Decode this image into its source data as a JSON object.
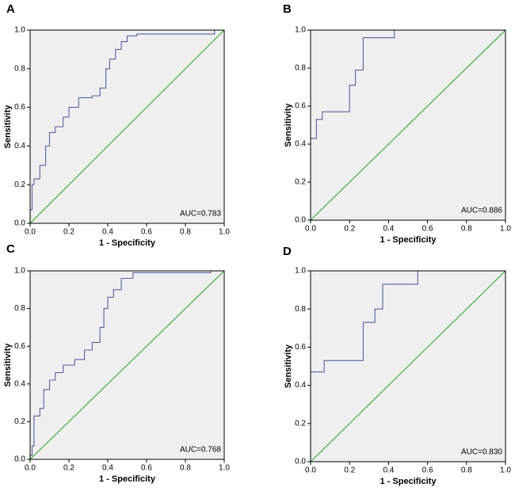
{
  "chart_data": [
    {
      "type": "line",
      "label": "A",
      "xlabel": "1 - Specificity",
      "ylabel": "Sensitivity",
      "annotation": "AUC=0.783",
      "xlim": [
        0,
        1
      ],
      "ylim": [
        0,
        1
      ],
      "xticks": [
        {
          "value": 0,
          "label": "0.0"
        },
        0.2,
        0.4,
        0.6,
        0.8,
        {
          "value": 1,
          "label": "1.0"
        }
      ],
      "yticks": [
        {
          "value": 0,
          "label": "0.0"
        },
        0.2,
        0.4,
        0.6,
        0.8,
        {
          "value": 1,
          "label": "1.0"
        }
      ],
      "series": [
        {
          "color": "#5b5ea6",
          "x": [
            0,
            0,
            0.01,
            0.01,
            0.02,
            0.02,
            0.05,
            0.05,
            0.08,
            0.08,
            0.1,
            0.1,
            0.13,
            0.13,
            0.17,
            0.17,
            0.2,
            0.2,
            0.25,
            0.25,
            0.32,
            0.32,
            0.36,
            0.36,
            0.39,
            0.39,
            0.41,
            0.41,
            0.44,
            0.44,
            0.47,
            0.47,
            0.5,
            0.5,
            0.55,
            0.55,
            0.95,
            0.95,
            1
          ],
          "values": [
            0,
            0.07,
            0.07,
            0.2,
            0.2,
            0.23,
            0.23,
            0.3,
            0.3,
            0.4,
            0.4,
            0.47,
            0.47,
            0.5,
            0.5,
            0.55,
            0.55,
            0.6,
            0.6,
            0.65,
            0.65,
            0.66,
            0.66,
            0.7,
            0.7,
            0.8,
            0.8,
            0.85,
            0.85,
            0.9,
            0.9,
            0.94,
            0.94,
            0.97,
            0.97,
            0.98,
            0.98,
            1,
            1
          ]
        },
        {
          "color": "#33a833",
          "x": [
            0,
            1
          ],
          "values": [
            0,
            1
          ]
        }
      ]
    },
    {
      "type": "line",
      "label": "B",
      "xlabel": "1 - Specificity",
      "ylabel": "Sensitivity",
      "annotation": "AUC=0.886",
      "xlim": [
        0,
        1
      ],
      "ylim": [
        0,
        1
      ],
      "xticks": [
        {
          "value": 0,
          "label": "0.0"
        },
        0.2,
        0.4,
        0.6,
        0.8,
        {
          "value": 1,
          "label": "1.0"
        }
      ],
      "yticks": [
        {
          "value": 0,
          "label": "0.0"
        },
        0.2,
        0.4,
        0.6,
        0.8,
        {
          "value": 1,
          "label": "1.0"
        }
      ],
      "series": [
        {
          "color": "#5b5ea6",
          "x": [
            0,
            0,
            0.03,
            0.03,
            0.06,
            0.06,
            0.2,
            0.2,
            0.23,
            0.23,
            0.27,
            0.27,
            0.43,
            0.43,
            1
          ],
          "values": [
            0,
            0.43,
            0.43,
            0.53,
            0.53,
            0.57,
            0.57,
            0.71,
            0.71,
            0.79,
            0.79,
            0.96,
            0.96,
            1,
            1
          ]
        },
        {
          "color": "#33a833",
          "x": [
            0,
            1
          ],
          "values": [
            0,
            1
          ]
        }
      ]
    },
    {
      "type": "line",
      "label": "C",
      "xlabel": "1 - Specificity",
      "ylabel": "Sensitivity",
      "annotation": "AUC=0.768",
      "xlim": [
        0,
        1
      ],
      "ylim": [
        0,
        1
      ],
      "xticks": [
        {
          "value": 0,
          "label": "0.0"
        },
        0.2,
        0.4,
        0.6,
        0.8,
        {
          "value": 1,
          "label": "1.0"
        }
      ],
      "yticks": [
        {
          "value": 0,
          "label": "0.0"
        },
        0.2,
        0.4,
        0.6,
        0.8,
        {
          "value": 1,
          "label": "1.0"
        }
      ],
      "series": [
        {
          "color": "#5b5ea6",
          "x": [
            0,
            0,
            0.01,
            0.01,
            0.02,
            0.02,
            0.05,
            0.05,
            0.07,
            0.07,
            0.1,
            0.1,
            0.13,
            0.13,
            0.17,
            0.17,
            0.23,
            0.23,
            0.28,
            0.28,
            0.32,
            0.32,
            0.36,
            0.36,
            0.38,
            0.38,
            0.4,
            0.4,
            0.43,
            0.43,
            0.47,
            0.47,
            0.53,
            0.53,
            0.93,
            0.93,
            1
          ],
          "values": [
            0,
            0.02,
            0.02,
            0.07,
            0.07,
            0.23,
            0.23,
            0.27,
            0.27,
            0.37,
            0.37,
            0.42,
            0.42,
            0.46,
            0.46,
            0.5,
            0.5,
            0.53,
            0.53,
            0.58,
            0.58,
            0.62,
            0.62,
            0.7,
            0.7,
            0.8,
            0.8,
            0.86,
            0.86,
            0.9,
            0.9,
            0.96,
            0.96,
            0.99,
            0.99,
            1,
            1
          ]
        },
        {
          "color": "#33a833",
          "x": [
            0,
            1
          ],
          "values": [
            0,
            1
          ]
        }
      ]
    },
    {
      "type": "line",
      "label": "D",
      "xlabel": "1 - Specificity",
      "ylabel": "Sensitivity",
      "annotation": "AUC=0.830",
      "xlim": [
        0,
        1
      ],
      "ylim": [
        0,
        1
      ],
      "xticks": [
        {
          "value": 0,
          "label": "0.0"
        },
        0.2,
        0.4,
        0.6,
        0.8,
        {
          "value": 1,
          "label": "1.0"
        }
      ],
      "yticks": [
        {
          "value": 0,
          "label": "0.0"
        },
        0.2,
        0.4,
        0.6,
        0.8,
        {
          "value": 1,
          "label": "1.0"
        }
      ],
      "series": [
        {
          "color": "#5b5ea6",
          "x": [
            0,
            0,
            0.07,
            0.07,
            0.27,
            0.27,
            0.33,
            0.33,
            0.37,
            0.37,
            0.55,
            0.55,
            1
          ],
          "values": [
            0,
            0.47,
            0.47,
            0.53,
            0.53,
            0.73,
            0.73,
            0.8,
            0.8,
            0.93,
            0.93,
            1,
            1
          ]
        },
        {
          "color": "#33a833",
          "x": [
            0,
            1
          ],
          "values": [
            0,
            1
          ]
        }
      ]
    }
  ]
}
